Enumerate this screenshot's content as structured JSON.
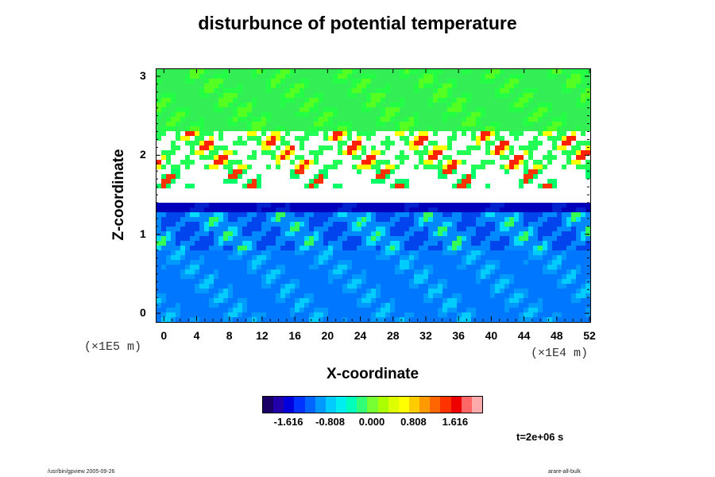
{
  "chart_data": {
    "type": "heatmap",
    "title": "disturbunce of potential temperature",
    "xlabel": "X-coordinate",
    "ylabel": "Z-coordinate",
    "x_ticks": [
      0,
      4,
      8,
      12,
      16,
      20,
      24,
      28,
      32,
      36,
      40,
      44,
      48,
      52
    ],
    "y_ticks": [
      0,
      1,
      2,
      3
    ],
    "x_unit": "(×1E4 m)",
    "y_unit": "(×1E5 m)",
    "xlim": [
      -1,
      52
    ],
    "ylim": [
      -0.1,
      3.1
    ],
    "colorbar": {
      "ticks": [
        "-1.616",
        "-0.808",
        "0.000",
        "0.808",
        "1.616"
      ],
      "colors": [
        "#1a0066",
        "#2200aa",
        "#0000dd",
        "#0033ff",
        "#0066ff",
        "#0099ff",
        "#00ccff",
        "#00eeee",
        "#00ffbb",
        "#33ff77",
        "#77ff33",
        "#aaff00",
        "#ddff00",
        "#ffff00",
        "#ffcc00",
        "#ff9900",
        "#ff6600",
        "#ff3300",
        "#ee0000",
        "#ff6666",
        "#ffaaaa"
      ]
    }
  },
  "time_label": "t=2e+06 s",
  "footer": {
    "left": "/usr/bin/gpview 2005-09-26",
    "right": "arare-all-bulk"
  }
}
